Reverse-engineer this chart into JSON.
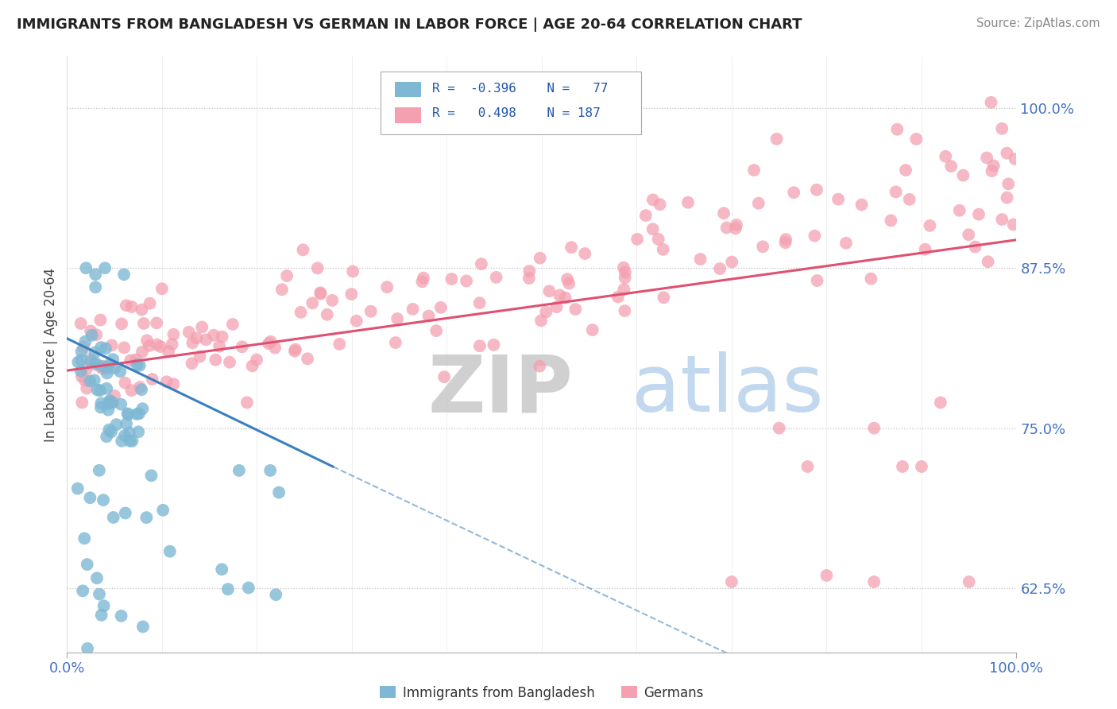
{
  "title": "IMMIGRANTS FROM BANGLADESH VS GERMAN IN LABOR FORCE | AGE 20-64 CORRELATION CHART",
  "source": "Source: ZipAtlas.com",
  "ylabel": "In Labor Force | Age 20-64",
  "legend_label1": "Immigrants from Bangladesh",
  "legend_label2": "Germans",
  "r1": "-0.396",
  "n1": "77",
  "r2": "0.498",
  "n2": "187",
  "blue_color": "#7EB8D4",
  "pink_color": "#F4A0B0",
  "blue_line_color": "#3A7FBF",
  "pink_line_color": "#E05070",
  "xlim": [
    0.0,
    1.0
  ],
  "ylim": [
    0.575,
    1.04
  ],
  "yticks": [
    0.625,
    0.75,
    0.875,
    1.0
  ],
  "ytick_labels": [
    "62.5%",
    "75.0%",
    "87.5%",
    "100.0%"
  ],
  "xticks": [
    0.0,
    1.0
  ],
  "xtick_labels": [
    "0.0%",
    "100.0%"
  ]
}
